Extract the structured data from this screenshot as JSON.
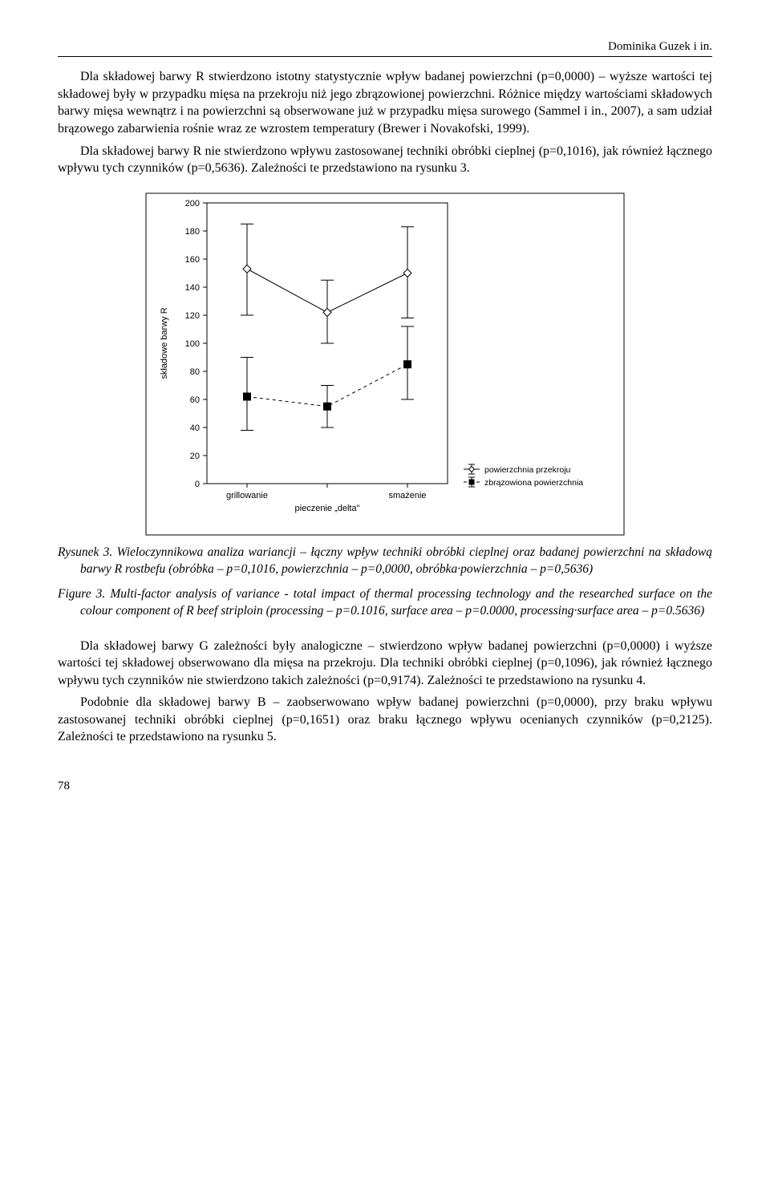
{
  "header": {
    "author_line": "Dominika Guzek i in."
  },
  "paragraphs": {
    "p1": "Dla składowej barwy R stwierdzono istotny statystycznie wpływ badanej powierzchni (p=0,0000) – wyższe wartości tej składowej były w przypadku mięsa na przekroju niż jego zbrązowionej powierzchni. Różnice między wartościami składowych barwy mięsa wewnątrz i na powierzchni są obserwowane już w przypadku mięsa surowego (Sammel i in., 2007), a sam udział brązowego zabarwienia rośnie wraz ze wzrostem temperatury (Brewer i Novakofski, 1999).",
    "p2": "Dla składowej barwy R nie stwierdzono wpływu zastosowanej techniki obróbki cieplnej (p=0,1016), jak również łącznego wpływu tych czynników (p=0,5636). Zależności te przedstawiono na rysunku 3.",
    "p3": "Dla składowej barwy G zależności były analogiczne – stwierdzono wpływ badanej powierzchni (p=0,0000) i wyższe wartości tej składowej obserwowano dla mięsa na przekroju. Dla techniki obróbki cieplnej (p=0,1096), jak również łącznego wpływu tych czynników nie stwierdzono takich zależności (p=0,9174). Zależności te przedstawiono na rysunku 4.",
    "p4": "Podobnie dla składowej barwy B – zaobserwowano wpływ badanej powierzchni (p=0,0000), przy braku wpływu zastosowanej techniki obróbki cieplnej (p=0,1651) oraz braku łącznego wpływu ocenianych czynników (p=0,2125). Zależności te przedstawiono na rysunku 5."
  },
  "figure": {
    "caption_pl_label": "Rysunek 3.",
    "caption_pl": "Wieloczynnikowa analiza wariancji – łączny wpływ techniki obróbki cieplnej oraz badanej powierzchni na składową barwy R rostbefu (obróbka – p=0,1016, powierzchnia – p=0,0000, obróbka·powierzchnia – p=0,5636)",
    "caption_en_label": "Figure 3.",
    "caption_en": "Multi-factor analysis of variance - total impact of thermal processing technology and the researched surface on the colour component of R beef striploin (processing – p=0.1016, surface area – p=0.0000, processing·surface area – p=0.5636)"
  },
  "chart": {
    "type": "interval-plot",
    "y_label": "składowe barwy R",
    "y_min": 0,
    "y_max": 200,
    "y_tick_step": 20,
    "y_ticks": [
      0,
      20,
      40,
      60,
      80,
      100,
      120,
      140,
      160,
      180,
      200
    ],
    "x_categories": [
      "grillowanie",
      "pieczenie „delta\"",
      "smażenie"
    ],
    "series": [
      {
        "name": "powierzchnia przekroju",
        "marker": "hollow-diamond",
        "line_dash": "none",
        "color": "#000000",
        "points": [
          {
            "x": 0,
            "mean": 153,
            "lo": 120,
            "hi": 185
          },
          {
            "x": 1,
            "mean": 122,
            "lo": 100,
            "hi": 145
          },
          {
            "x": 2,
            "mean": 150,
            "lo": 118,
            "hi": 183
          }
        ]
      },
      {
        "name": "zbrązowiona powierzchnia",
        "marker": "filled-square",
        "line_dash": "4 4",
        "color": "#000000",
        "points": [
          {
            "x": 0,
            "mean": 62,
            "lo": 38,
            "hi": 90
          },
          {
            "x": 1,
            "mean": 55,
            "lo": 40,
            "hi": 70
          },
          {
            "x": 2,
            "mean": 85,
            "lo": 60,
            "hi": 112
          }
        ]
      }
    ],
    "legend_items": [
      {
        "label": "powierzchnia przekroju",
        "series": 0
      },
      {
        "label": "zbrązowiona powierzchnia",
        "series": 1
      }
    ],
    "background_color": "#ffffff",
    "frame_color": "#000000",
    "tick_font_size": 11,
    "axis_label_font_size": 11,
    "legend_font_size": 10.5,
    "line_width": 1,
    "whisker_cap": 8,
    "marker_size": 5
  },
  "page_number": "78"
}
